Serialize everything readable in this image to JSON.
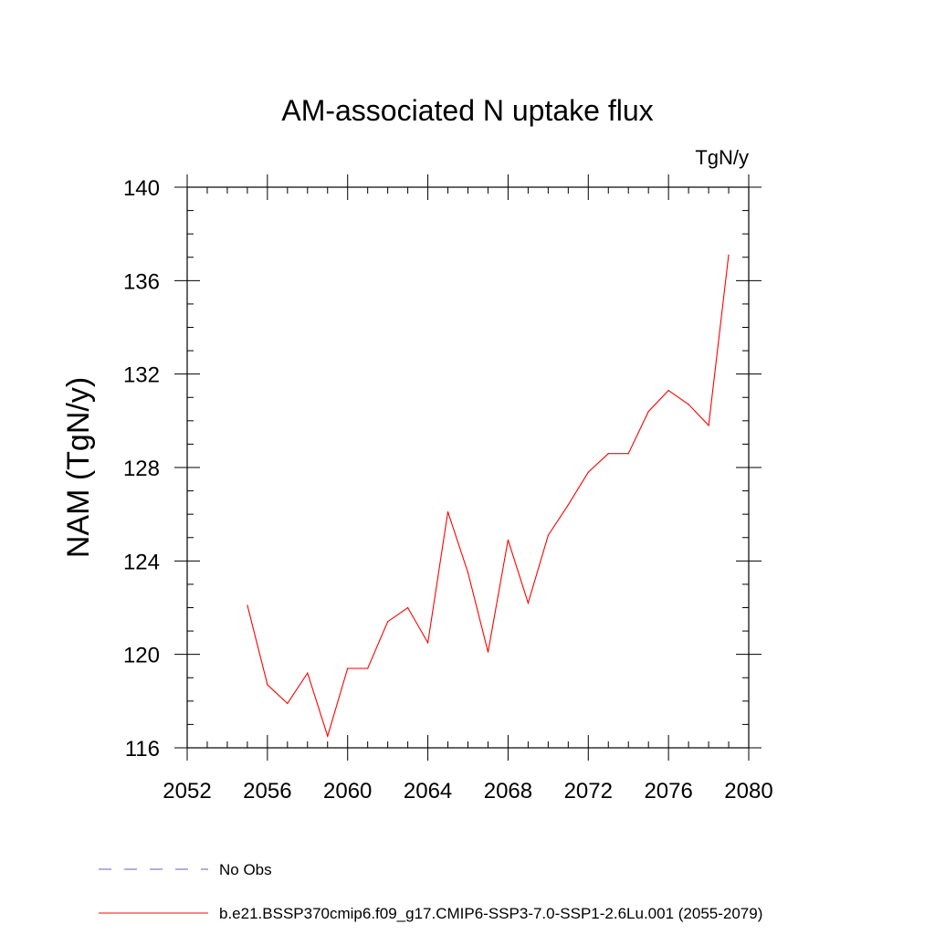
{
  "chart_data": {
    "type": "line",
    "title": "AM-associated N uptake flux",
    "units_label": "TgN/y",
    "xlabel": "",
    "ylabel": "NAM  (TgN/y)",
    "xlim": [
      2052,
      2080
    ],
    "ylim": [
      116,
      140
    ],
    "xticks": [
      2052,
      2056,
      2060,
      2064,
      2068,
      2072,
      2076,
      2080
    ],
    "xtick_labels": [
      "2052",
      "2056",
      "2060",
      "2064",
      "2068",
      "2072",
      "2076",
      "2080"
    ],
    "yticks": [
      116,
      120,
      124,
      128,
      132,
      136,
      140
    ],
    "ytick_labels": [
      "116",
      "120",
      "124",
      "128",
      "132",
      "136",
      "140"
    ],
    "grid": false,
    "legend_position": "bottom",
    "series": [
      {
        "name": "b.e21.BSSP370cmip6.f09_g17.CMIP6-SSP3-7.0-SSP1-2.6Lu.001 (2055-2079)",
        "color": "#ff0000",
        "style": "solid",
        "x": [
          2055,
          2056,
          2057,
          2058,
          2059,
          2060,
          2061,
          2062,
          2063,
          2064,
          2065,
          2066,
          2067,
          2068,
          2069,
          2070,
          2071,
          2072,
          2073,
          2074,
          2075,
          2076,
          2077,
          2078,
          2079
        ],
        "y": [
          122.1,
          118.7,
          117.9,
          119.2,
          116.5,
          119.4,
          119.4,
          121.4,
          122.0,
          120.5,
          126.1,
          123.5,
          120.1,
          124.9,
          122.2,
          125.1,
          126.4,
          127.8,
          128.6,
          128.6,
          130.4,
          131.3,
          130.7,
          129.8,
          137.1
        ]
      }
    ],
    "legend": [
      {
        "label": "No Obs",
        "color": "#6a5acd",
        "style": "dashed"
      },
      {
        "label": "b.e21.BSSP370cmip6.f09_g17.CMIP6-SSP3-7.0-SSP1-2.6Lu.001 (2055-2079)",
        "color": "#ff0000",
        "style": "solid"
      }
    ]
  }
}
